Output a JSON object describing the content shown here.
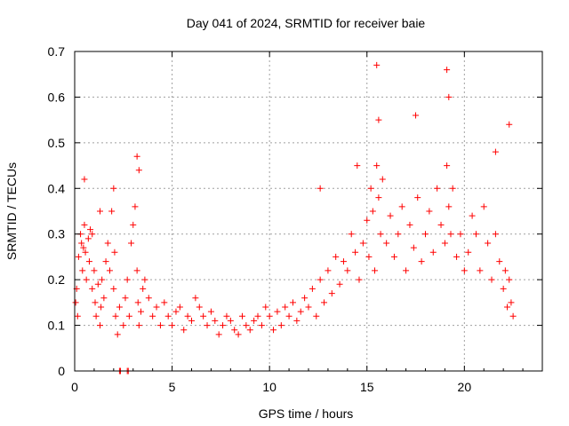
{
  "chart_data": {
    "type": "scatter",
    "title": "Day 041 of 2024, SRMTID for receiver baie",
    "xlabel": "GPS time / hours",
    "ylabel": "SRMTID / TECUs",
    "xlim": [
      0,
      24
    ],
    "ylim": [
      0,
      0.7
    ],
    "xticks": [
      0,
      5,
      10,
      15,
      20
    ],
    "yticks": [
      0,
      0.1,
      0.2,
      0.3,
      0.4,
      0.5,
      0.6,
      0.7
    ],
    "xtick_labels": [
      "0",
      "5",
      "10",
      "15",
      "20"
    ],
    "ytick_labels": [
      "0",
      "0.1",
      "0.2",
      "0.3",
      "0.4",
      "0.5",
      "0.6",
      "0.7"
    ],
    "grid": true,
    "marker": "+",
    "color": "#ff0000",
    "grid_color": "#a0a0a0",
    "series": [
      {
        "name": "SRMTID",
        "x": [
          0.05,
          0.1,
          0.15,
          0.2,
          0.3,
          0.35,
          0.4,
          0.45,
          0.5,
          0.55,
          0.6,
          0.7,
          0.75,
          0.8,
          0.9,
          1.0,
          1.05,
          1.1,
          1.2,
          1.3,
          1.35,
          1.4,
          1.5,
          1.6,
          1.7,
          1.8,
          1.9,
          2.0,
          2.05,
          2.1,
          2.2,
          2.3,
          2.5,
          2.6,
          2.7,
          2.8,
          2.9,
          3.0,
          3.1,
          3.2,
          3.25,
          3.3,
          3.4,
          3.5,
          3.6,
          3.8,
          4.0,
          4.2,
          4.4,
          4.6,
          4.8,
          5.0,
          5.2,
          5.4,
          5.6,
          5.8,
          6.0,
          6.2,
          6.4,
          6.6,
          6.8,
          7.0,
          7.2,
          7.4,
          7.6,
          7.8,
          8.0,
          8.2,
          8.4,
          8.6,
          8.8,
          9.0,
          9.2,
          9.4,
          9.6,
          9.8,
          10.0,
          10.2,
          10.4,
          10.6,
          10.8,
          11.0,
          11.2,
          11.4,
          11.6,
          11.8,
          12.0,
          12.2,
          12.4,
          12.6,
          12.8,
          13.0,
          13.2,
          13.4,
          13.6,
          13.8,
          14.0,
          14.2,
          14.4,
          14.6,
          14.8,
          15.0,
          15.1,
          15.2,
          15.3,
          15.4,
          15.5,
          15.6,
          15.7,
          15.8,
          16.0,
          16.2,
          16.4,
          16.6,
          16.8,
          17.0,
          17.2,
          17.4,
          17.6,
          17.8,
          18.0,
          18.2,
          18.4,
          18.6,
          18.8,
          19.0,
          19.1,
          19.2,
          19.3,
          19.4,
          19.6,
          19.8,
          20.0,
          20.2,
          20.4,
          20.6,
          20.8,
          21.0,
          21.2,
          21.4,
          21.6,
          21.8,
          22.0,
          22.1,
          22.2,
          22.3,
          22.4,
          22.5,
          2.3,
          2.35,
          2.7,
          2.75,
          0.5,
          0.9,
          1.3,
          2.0,
          3.2,
          3.3,
          12.6,
          14.5,
          15.5,
          15.6,
          17.5,
          19.1,
          19.2,
          21.6,
          22.3
        ],
        "y": [
          0.15,
          0.18,
          0.12,
          0.25,
          0.3,
          0.28,
          0.22,
          0.27,
          0.32,
          0.26,
          0.2,
          0.29,
          0.24,
          0.31,
          0.18,
          0.22,
          0.15,
          0.12,
          0.19,
          0.1,
          0.14,
          0.2,
          0.16,
          0.24,
          0.28,
          0.22,
          0.35,
          0.18,
          0.26,
          0.12,
          0.08,
          0.14,
          0.1,
          0.16,
          0.2,
          0.12,
          0.28,
          0.32,
          0.36,
          0.22,
          0.15,
          0.1,
          0.13,
          0.18,
          0.2,
          0.16,
          0.12,
          0.14,
          0.1,
          0.15,
          0.12,
          0.1,
          0.13,
          0.14,
          0.09,
          0.12,
          0.11,
          0.16,
          0.14,
          0.12,
          0.1,
          0.13,
          0.11,
          0.08,
          0.1,
          0.12,
          0.11,
          0.09,
          0.08,
          0.12,
          0.1,
          0.09,
          0.11,
          0.12,
          0.1,
          0.14,
          0.12,
          0.09,
          0.13,
          0.1,
          0.14,
          0.12,
          0.15,
          0.11,
          0.13,
          0.16,
          0.14,
          0.18,
          0.12,
          0.2,
          0.15,
          0.22,
          0.17,
          0.25,
          0.19,
          0.24,
          0.22,
          0.3,
          0.26,
          0.2,
          0.28,
          0.33,
          0.25,
          0.4,
          0.35,
          0.22,
          0.45,
          0.38,
          0.3,
          0.42,
          0.28,
          0.34,
          0.25,
          0.3,
          0.36,
          0.22,
          0.32,
          0.27,
          0.38,
          0.24,
          0.3,
          0.35,
          0.26,
          0.4,
          0.32,
          0.28,
          0.45,
          0.36,
          0.3,
          0.4,
          0.25,
          0.3,
          0.22,
          0.26,
          0.34,
          0.3,
          0.22,
          0.36,
          0.28,
          0.2,
          0.3,
          0.24,
          0.18,
          0.22,
          0.14,
          0.2,
          0.15,
          0.12,
          0,
          0,
          0,
          0,
          0.42,
          0.3,
          0.35,
          0.4,
          0.47,
          0.44,
          0.4,
          0.45,
          0.67,
          0.55,
          0.56,
          0.66,
          0.6,
          0.48,
          0.54
        ]
      }
    ]
  }
}
